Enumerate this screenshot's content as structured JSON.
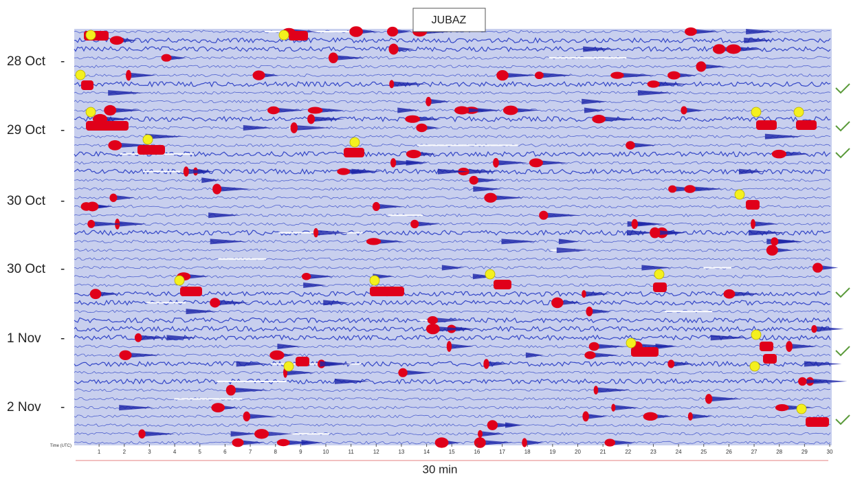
{
  "title": "JUBAZ",
  "row_labels": [
    "28 Oct",
    "29 Oct",
    "30 Oct",
    "30 Oct",
    "1 Nov",
    "2 Nov"
  ],
  "x_ticks": [
    1,
    2,
    3,
    4,
    5,
    6,
    7,
    8,
    9,
    10,
    11,
    12,
    13,
    14,
    15,
    16,
    17,
    18,
    19,
    20,
    21,
    22,
    23,
    24,
    25,
    26,
    27,
    28,
    29,
    30
  ],
  "x_axis_label": "Time (UTC)",
  "duration_label": "30 min"
}
